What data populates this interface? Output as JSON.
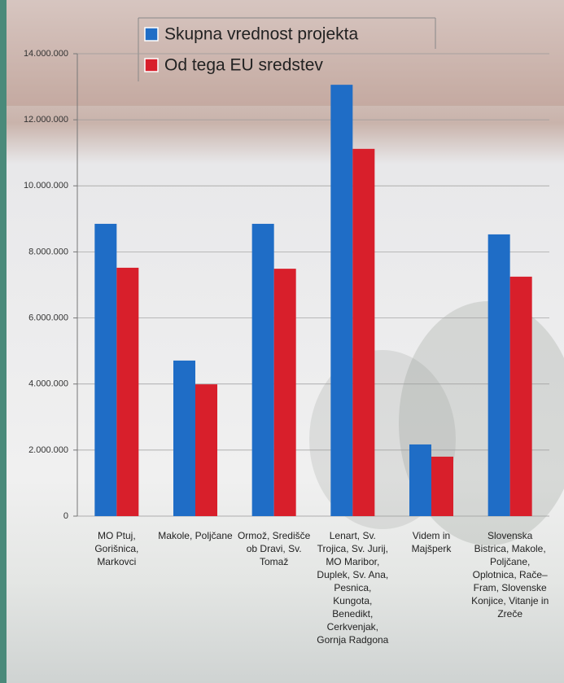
{
  "chart_data": {
    "type": "bar",
    "categories": [
      "MO Ptuj, Gorišnica, Markovci",
      "Makole, Poljčane",
      "Ormož, Središče ob Dravi, Sv. Tomaž",
      "Lenart, Sv. Trojica, Sv. Jurij, MO Maribor, Duplek, Sv. Ana, Pesnica, Kungota, Benedikt, Cerkvenjak, Gornja Radgona",
      "Videm in Majšperk",
      "Slovenska Bistrica, Makole, Poljčane, Oplotnica, Rače–Fram, Slovenske Konjice, Vitanje in Zreče"
    ],
    "series": [
      {
        "name": "Skupna vrednost projekta",
        "color": "#1f6dc6",
        "values": [
          8850000,
          4710000,
          8850000,
          13060000,
          2170000,
          8530000
        ]
      },
      {
        "name": "Od tega EU sredstev",
        "color": "#d81f2b",
        "values": [
          7520000,
          3990000,
          7490000,
          11120000,
          1800000,
          7250000
        ]
      }
    ],
    "ylim": [
      0,
      14000000
    ],
    "yticks": [
      0,
      {
        "value": 2000000,
        "label": "2.000.000"
      },
      {
        "value": 4000000,
        "label": "4.000.000"
      },
      {
        "value": 6000000,
        "label": "6.000.000"
      },
      {
        "value": 8000000,
        "label": "8.000.000"
      },
      {
        "value": 10000000,
        "label": "10.000.000"
      },
      {
        "value": 12000000,
        "label": "12.000.000"
      },
      {
        "value": 14000000,
        "label": "14.000.000"
      }
    ],
    "grid": true
  }
}
